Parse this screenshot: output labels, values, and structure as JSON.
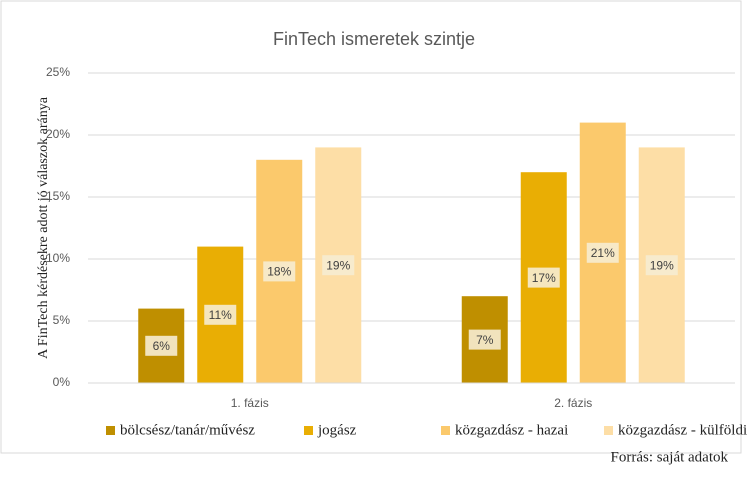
{
  "chart_data": {
    "type": "bar",
    "title": "FinTech ismeretek szintje",
    "y_label": "A FinTech kérdésekre adott jó válaszok aránya",
    "source": "Forrás: saját adatok",
    "categories": [
      "1. fázis",
      "2. fázis"
    ],
    "series": [
      {
        "name": "bölcsész/tanár/művész",
        "color": "#bf8f00",
        "values": [
          6,
          7
        ],
        "value_labels": [
          "6%",
          "7%"
        ]
      },
      {
        "name": "jogász",
        "color": "#e9ae04",
        "values": [
          11,
          17
        ],
        "value_labels": [
          "11%",
          "17%"
        ]
      },
      {
        "name": "közgazdász - hazai",
        "color": "#fbc96c",
        "values": [
          18,
          21
        ],
        "value_labels": [
          "18%",
          "21%"
        ]
      },
      {
        "name": "közgazdász - külföldi",
        "color": "#fddea6",
        "values": [
          19,
          19
        ],
        "value_labels": [
          "19%",
          "19%"
        ]
      }
    ],
    "ylim": [
      0,
      25
    ],
    "yticks": [
      {
        "value": 0,
        "label": "0%"
      },
      {
        "value": 5,
        "label": "5%"
      },
      {
        "value": 10,
        "label": "10%"
      },
      {
        "value": 15,
        "label": "15%"
      },
      {
        "value": 20,
        "label": "20%"
      },
      {
        "value": 25,
        "label": "25%"
      }
    ],
    "grid": true
  }
}
